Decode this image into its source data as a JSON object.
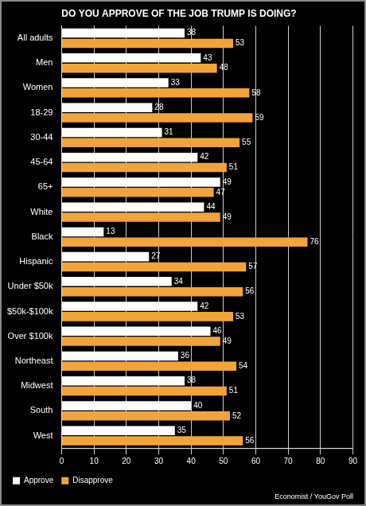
{
  "chart_data": {
    "type": "bar",
    "orientation": "horizontal",
    "title": "DO YOU APPROVE OF THE JOB TRUMP IS DOING?",
    "source": "Economist / YouGov Poll",
    "categories": [
      "All adults",
      "Men",
      "Women",
      "18-29",
      "30-44",
      "45-64",
      "65+",
      "White",
      "Black",
      "Hispanic",
      "Under $50k",
      "$50k-$100k",
      "Over $100k",
      "Northeast",
      "Midwest",
      "South",
      "West"
    ],
    "series": [
      {
        "name": "Approve",
        "color": "#ffffff",
        "values": [
          38,
          43,
          33,
          28,
          31,
          42,
          49,
          44,
          13,
          27,
          34,
          42,
          46,
          36,
          38,
          40,
          35
        ]
      },
      {
        "name": "Disapprove",
        "color": "#f2a43a",
        "values": [
          53,
          48,
          58,
          59,
          55,
          51,
          47,
          49,
          76,
          57,
          56,
          53,
          49,
          54,
          51,
          52,
          56
        ]
      }
    ],
    "xlim": [
      0,
      90
    ],
    "xticks": [
      0,
      10,
      20,
      30,
      40,
      50,
      60,
      70,
      80,
      90
    ],
    "grid": true,
    "legend": "bottom-left",
    "data_labels": true
  }
}
